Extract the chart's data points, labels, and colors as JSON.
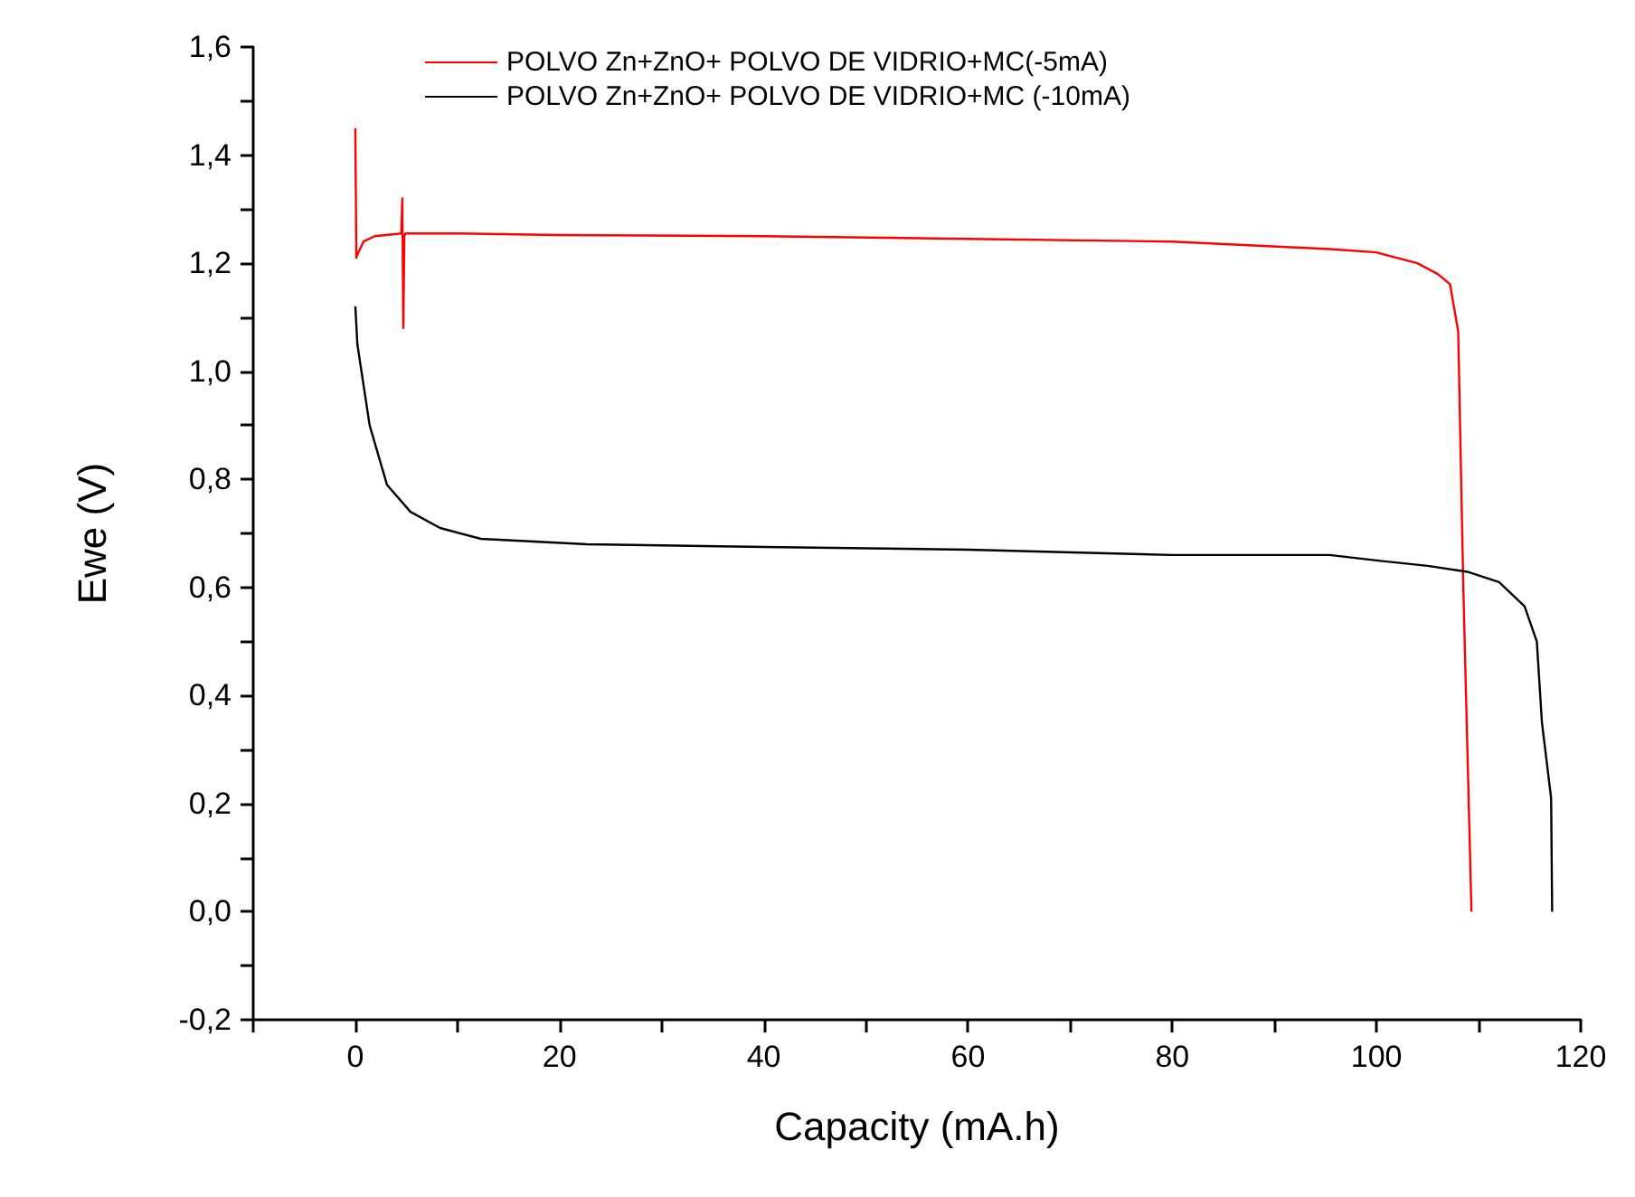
{
  "chart_data": {
    "type": "line",
    "xlabel": "Capacity (mA.h)",
    "ylabel": "Ewe (V)",
    "xlim": [
      -10,
      120
    ],
    "ylim": [
      -0.2,
      1.6
    ],
    "xticks": [
      {
        "value": -10,
        "label": null
      },
      0,
      {
        "value": 10,
        "label": null
      },
      20,
      {
        "value": 30,
        "label": null
      },
      40,
      {
        "value": 50,
        "label": null
      },
      60,
      {
        "value": 70,
        "label": null
      },
      80,
      {
        "value": 90,
        "label": null
      },
      100,
      {
        "value": 110,
        "label": null
      },
      120
    ],
    "yticks": [
      {
        "value": -0.2,
        "label": "-0,2"
      },
      {
        "value": -0.1,
        "label": null
      },
      {
        "value": 0,
        "label": "0,0"
      },
      {
        "value": 0.1,
        "label": null
      },
      {
        "value": 0.2,
        "label": "0,2"
      },
      {
        "value": 0.3,
        "label": null
      },
      {
        "value": 0.4,
        "label": "0,4"
      },
      {
        "value": 0.5,
        "label": null
      },
      {
        "value": 0.6,
        "label": "0,6"
      },
      {
        "value": 0.7,
        "label": null
      },
      {
        "value": 0.8,
        "label": "0,8"
      },
      {
        "value": 0.9,
        "label": null
      },
      {
        "value": 1.0,
        "label": "1,0"
      },
      {
        "value": 1.1,
        "label": null
      },
      {
        "value": 1.2,
        "label": "1,2"
      },
      {
        "value": 1.3,
        "label": null
      },
      {
        "value": 1.4,
        "label": "1,4"
      },
      {
        "value": 1.5,
        "label": null
      },
      {
        "value": 1.6,
        "label": "1,6"
      }
    ],
    "legend": "top",
    "marker": "none",
    "line_style": "solid",
    "series": [
      {
        "name": "POLVO Zn+ZnO+ POLVO DE VIDRIO+MC(-5mA)",
        "color": "#ff0000",
        "x": [
          0,
          0.1,
          0.3,
          0.8,
          1.9,
          4.5,
          4.6,
          4.7,
          4.8,
          4.9,
          10,
          20,
          40,
          60,
          80,
          95.4,
          100,
          104,
          106,
          107.2,
          108,
          108.5,
          109.3
        ],
        "values": [
          1.45,
          1.21,
          1.22,
          1.24,
          1.25,
          1.255,
          1.32,
          1.08,
          1.25,
          1.255,
          1.255,
          1.252,
          1.25,
          1.245,
          1.24,
          1.226,
          1.22,
          1.2,
          1.18,
          1.161,
          1.074,
          0.6,
          0.0
        ]
      },
      {
        "name": "POLVO Zn+ZnO+ POLVO DE VIDRIO+MC (-10mA)",
        "color": "#000000",
        "x": [
          0,
          0.2,
          1.4,
          3.1,
          5.4,
          8.3,
          12.3,
          22.7,
          40,
          60,
          80,
          95.4,
          100,
          105,
          108.9,
          112,
          114.5,
          115.7,
          116.2,
          117.1,
          117.2
        ],
        "values": [
          1.12,
          1.05,
          0.9,
          0.79,
          0.74,
          0.71,
          0.69,
          0.68,
          0.675,
          0.67,
          0.66,
          0.66,
          0.65,
          0.64,
          0.629,
          0.61,
          0.565,
          0.5,
          0.35,
          0.21,
          0.0
        ]
      }
    ]
  }
}
